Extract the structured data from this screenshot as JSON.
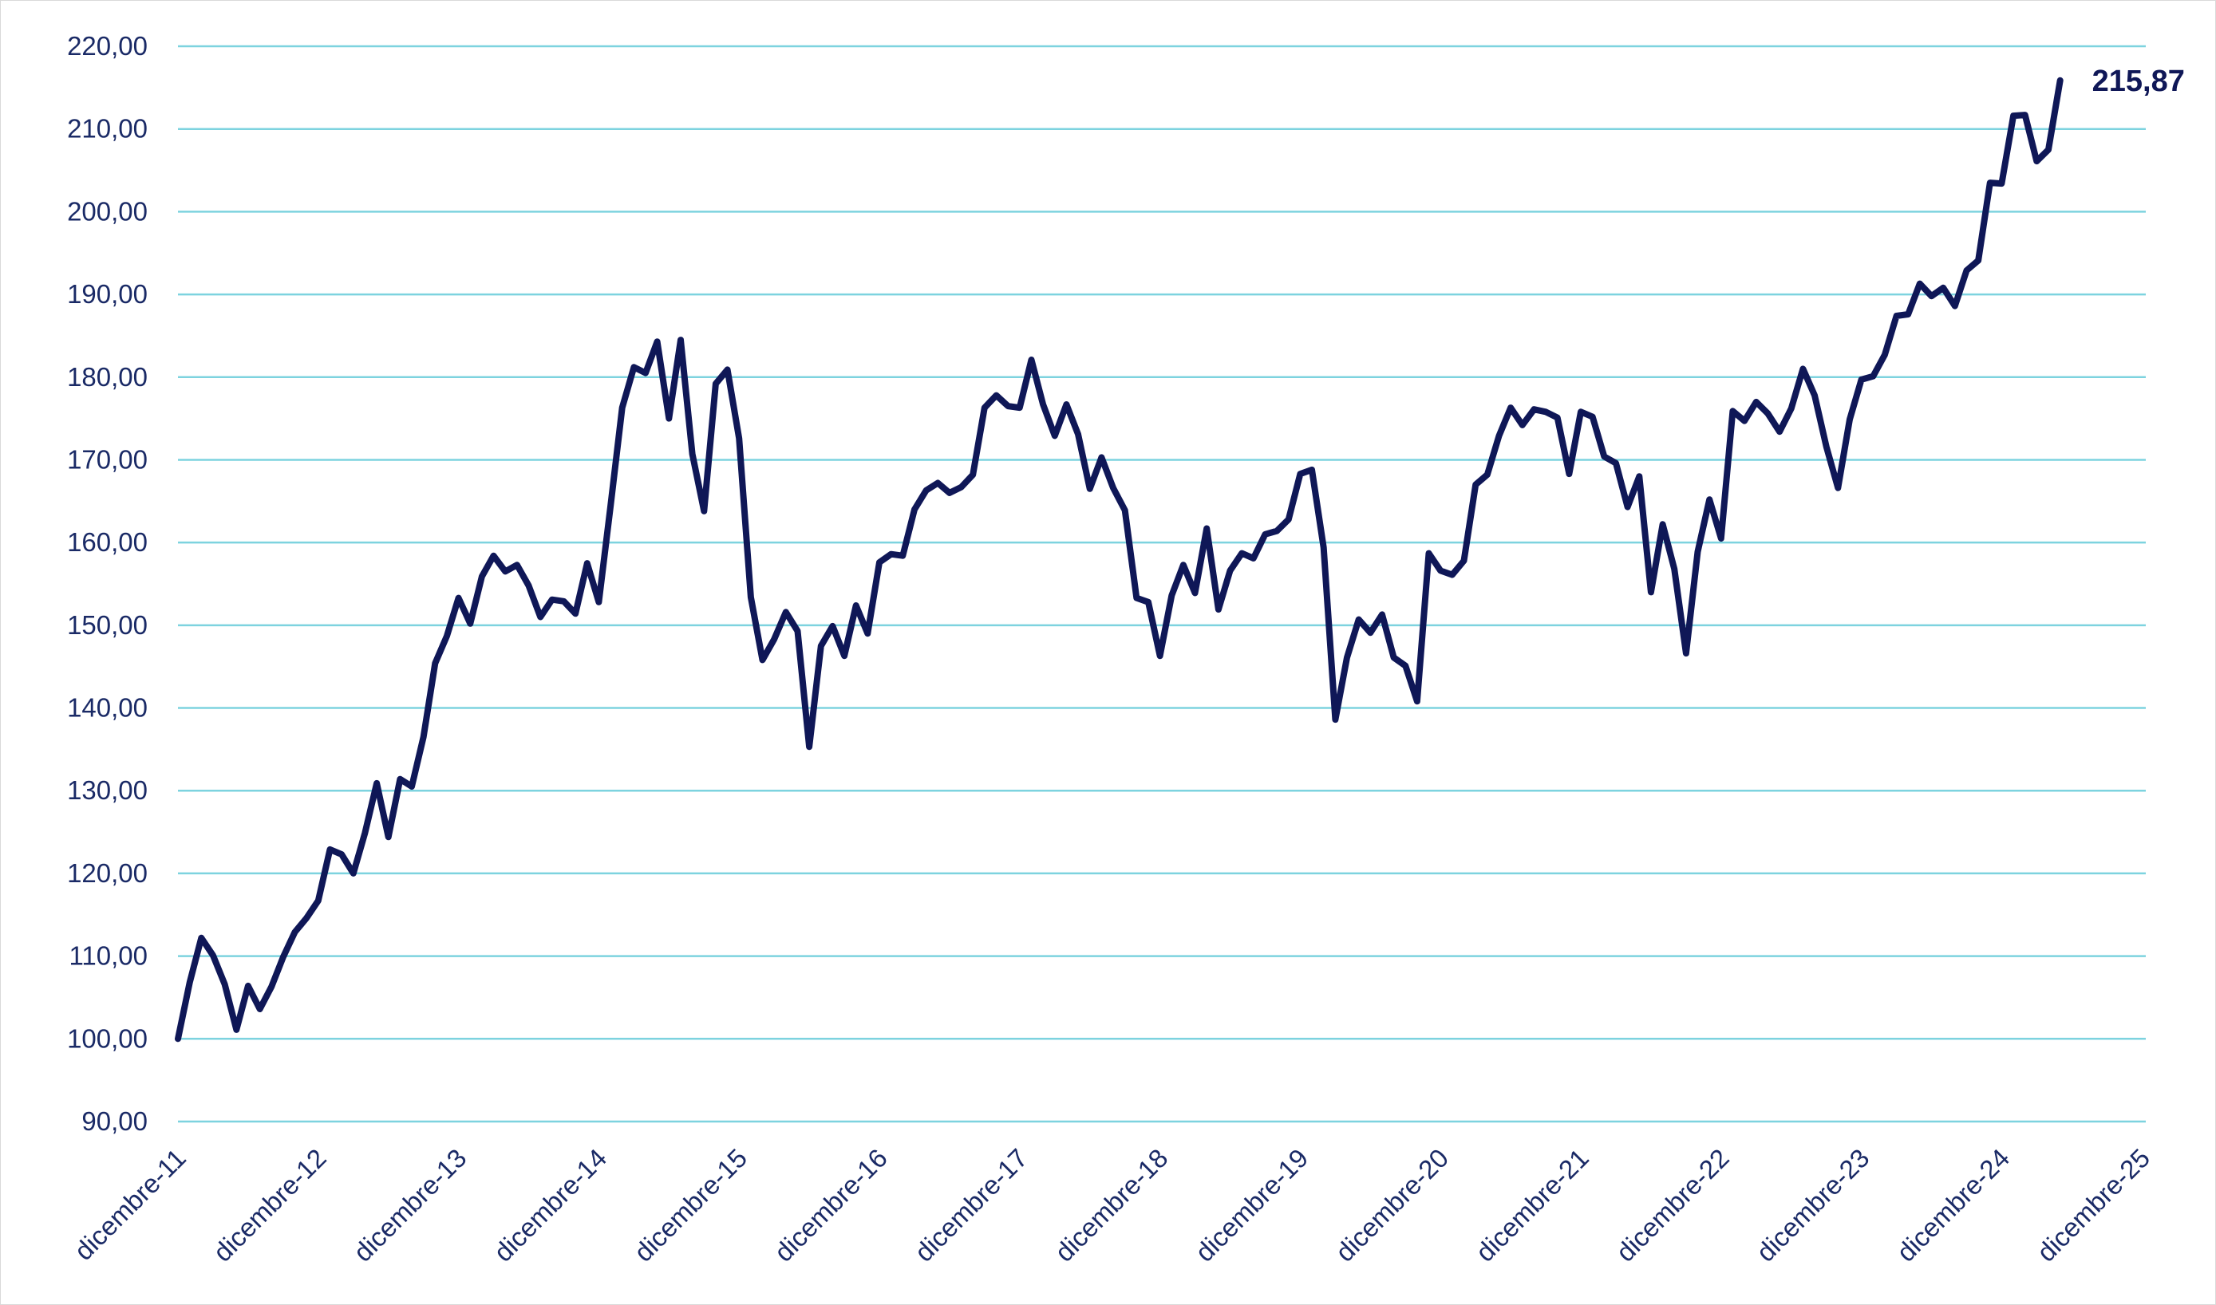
{
  "chart_data": {
    "type": "line",
    "title": "",
    "xlabel": "",
    "ylabel": "",
    "ylim": [
      90,
      220
    ],
    "yticks": [
      90,
      100,
      110,
      120,
      130,
      140,
      150,
      160,
      170,
      180,
      190,
      200,
      210,
      220
    ],
    "ytick_labels": [
      "90,00",
      "100,00",
      "110,00",
      "120,00",
      "130,00",
      "140,00",
      "150,00",
      "160,00",
      "170,00",
      "180,00",
      "190,00",
      "200,00",
      "210,00",
      "220,00"
    ],
    "xtick_labels": [
      "dicembre-11",
      "dicembre-12",
      "dicembre-13",
      "dicembre-14",
      "dicembre-15",
      "dicembre-16",
      "dicembre-17",
      "dicembre-18",
      "dicembre-19",
      "dicembre-20",
      "dicembre-21",
      "dicembre-22",
      "dicembre-23",
      "dicembre-24",
      "dicembre-25"
    ],
    "grid": true,
    "x_unit": "months since dicembre-11 (12 per tick label)",
    "series": [
      {
        "color": "#0f1757",
        "values": [
          100.0,
          106.8,
          112.2,
          110.1,
          106.6,
          101.1,
          106.4,
          103.6,
          106.3,
          109.9,
          112.9,
          114.6,
          116.7,
          122.9,
          122.3,
          120.0,
          124.9,
          130.9,
          124.4,
          131.4,
          130.5,
          136.5,
          145.4,
          148.7,
          153.3,
          150.2,
          155.9,
          158.4,
          156.5,
          157.3,
          154.8,
          151.0,
          153.1,
          152.9,
          151.4,
          157.5,
          152.8,
          164.4,
          176.3,
          181.2,
          180.5,
          184.3,
          175.0,
          184.5,
          170.7,
          163.8,
          179.2,
          180.9,
          172.6,
          153.4,
          145.8,
          148.3,
          151.6,
          149.3,
          135.3,
          147.5,
          149.9,
          146.3,
          152.4,
          149.0,
          157.6,
          158.6,
          158.4,
          164.0,
          166.3,
          167.2,
          166.0,
          166.7,
          168.2,
          176.3,
          177.8,
          176.5,
          176.3,
          182.1,
          176.7,
          172.9,
          176.7,
          173.1,
          166.5,
          170.3,
          166.6,
          163.9,
          153.3,
          152.8,
          146.3,
          153.6,
          157.3,
          153.9,
          161.7,
          151.9,
          156.6,
          158.7,
          158.1,
          161.0,
          161.4,
          162.8,
          168.3,
          168.8,
          159.4,
          138.6,
          146.1,
          150.7,
          149.1,
          151.3,
          146.1,
          145.1,
          140.8,
          158.7,
          156.6,
          156.1,
          157.8,
          167.0,
          168.2,
          172.9,
          176.3,
          174.2,
          176.1,
          175.8,
          175.1,
          168.3,
          175.8,
          175.2,
          170.4,
          169.6,
          164.3,
          168.0,
          154.0,
          162.2,
          156.8,
          146.6,
          158.9,
          165.2,
          160.5,
          175.9,
          174.7,
          177.0,
          175.6,
          173.4,
          176.2,
          181.0,
          177.8,
          171.6,
          166.6,
          174.9,
          179.7,
          180.1,
          182.7,
          187.4,
          187.6,
          191.3,
          189.8,
          190.8,
          188.6,
          192.9,
          194.1,
          203.5,
          203.4,
          211.6,
          211.7,
          206.1,
          207.5,
          215.87
        ]
      }
    ],
    "end_label": "215,87"
  }
}
